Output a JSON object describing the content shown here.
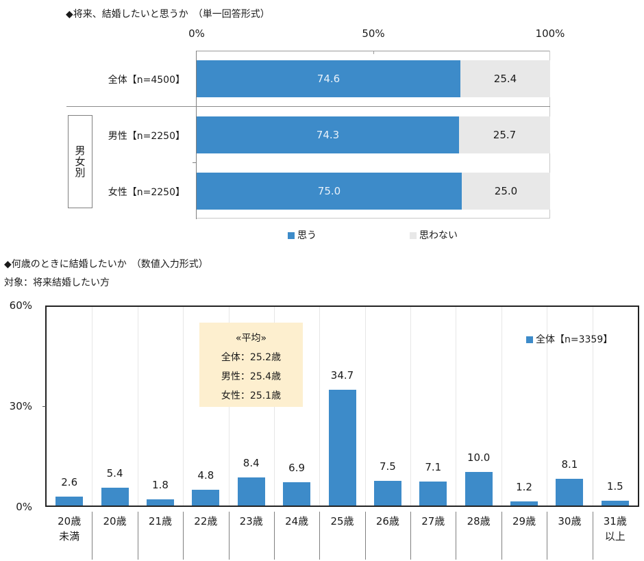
{
  "chart_data": [
    {
      "type": "bar",
      "orientation": "horizontal-stacked-100",
      "title": "◆将来、結婚したいと思うか　（単一回答形式）",
      "categories": [
        "全体【n=4500】",
        "男性【n=2250】",
        "女性【n=2250】"
      ],
      "group_label": "男女別",
      "series": [
        {
          "name": "思う",
          "color": "#3d8bc9",
          "values": [
            74.6,
            74.3,
            75.0
          ]
        },
        {
          "name": "思わない",
          "color": "#e8e8e8",
          "values": [
            25.4,
            25.7,
            25.0
          ]
        }
      ],
      "xlim": [
        0,
        100
      ],
      "xticks": [
        "0%",
        "50%",
        "100%"
      ],
      "legend_position": "bottom"
    },
    {
      "type": "bar",
      "title": "◆何歳のときに結婚したいか　（数値入力形式）",
      "subtitle": "対象：将来結婚したい方",
      "categories": [
        "20歳未満",
        "20歳",
        "21歳",
        "22歳",
        "23歳",
        "24歳",
        "25歳",
        "26歳",
        "27歳",
        "28歳",
        "29歳",
        "30歳",
        "31歳以上"
      ],
      "series": [
        {
          "name": "全体【n=3359】",
          "color": "#3d8bc9",
          "values": [
            2.6,
            5.4,
            1.8,
            4.8,
            8.4,
            6.9,
            34.7,
            7.5,
            7.1,
            10.0,
            1.2,
            8.1,
            1.5
          ]
        }
      ],
      "ylim": [
        0,
        60
      ],
      "yticks": [
        "0%",
        "30%",
        "60%"
      ],
      "legend_position": "top-right",
      "annotation": [
        "«平均»",
        "全体：25.2歳",
        "男性：25.4歳",
        "女性：25.1歳"
      ]
    }
  ],
  "top": {
    "title": "◆将来、結婚したいと思うか　（単一回答形式）",
    "ticks": [
      "0%",
      "50%",
      "100%"
    ],
    "group_label": "男女別",
    "rows": [
      {
        "label": "全体【n=4500】",
        "yes": "74.6",
        "no": "25.4"
      },
      {
        "label": "男性【n=2250】",
        "yes": "74.3",
        "no": "25.7"
      },
      {
        "label": "女性【n=2250】",
        "yes": "75.0",
        "no": "25.0"
      }
    ],
    "legend": {
      "yes": "思う",
      "no": "思わない"
    }
  },
  "bottom": {
    "title": "◆何歳のときに結婚したいか　（数値入力形式）",
    "subtitle": "対象：将来結婚したい方",
    "yticks": {
      "top": "60%",
      "mid": "30%",
      "bottom": "0%"
    },
    "legend": "全体【n=3359】",
    "average": {
      "heading": "«平均»",
      "all": "全体：25.2歳",
      "male": "男性：25.4歳",
      "female": "女性：25.1歳"
    },
    "bars": [
      {
        "l1": "20歳",
        "l2": "未満",
        "value": "2.6"
      },
      {
        "l1": "20歳",
        "l2": "",
        "value": "5.4"
      },
      {
        "l1": "21歳",
        "l2": "",
        "value": "1.8"
      },
      {
        "l1": "22歳",
        "l2": "",
        "value": "4.8"
      },
      {
        "l1": "23歳",
        "l2": "",
        "value": "8.4"
      },
      {
        "l1": "24歳",
        "l2": "",
        "value": "6.9"
      },
      {
        "l1": "25歳",
        "l2": "",
        "value": "34.7"
      },
      {
        "l1": "26歳",
        "l2": "",
        "value": "7.5"
      },
      {
        "l1": "27歳",
        "l2": "",
        "value": "7.1"
      },
      {
        "l1": "28歳",
        "l2": "",
        "value": "10.0"
      },
      {
        "l1": "29歳",
        "l2": "",
        "value": "1.2"
      },
      {
        "l1": "30歳",
        "l2": "",
        "value": "8.1"
      },
      {
        "l1": "31歳",
        "l2": "以上",
        "value": "1.5"
      }
    ]
  }
}
